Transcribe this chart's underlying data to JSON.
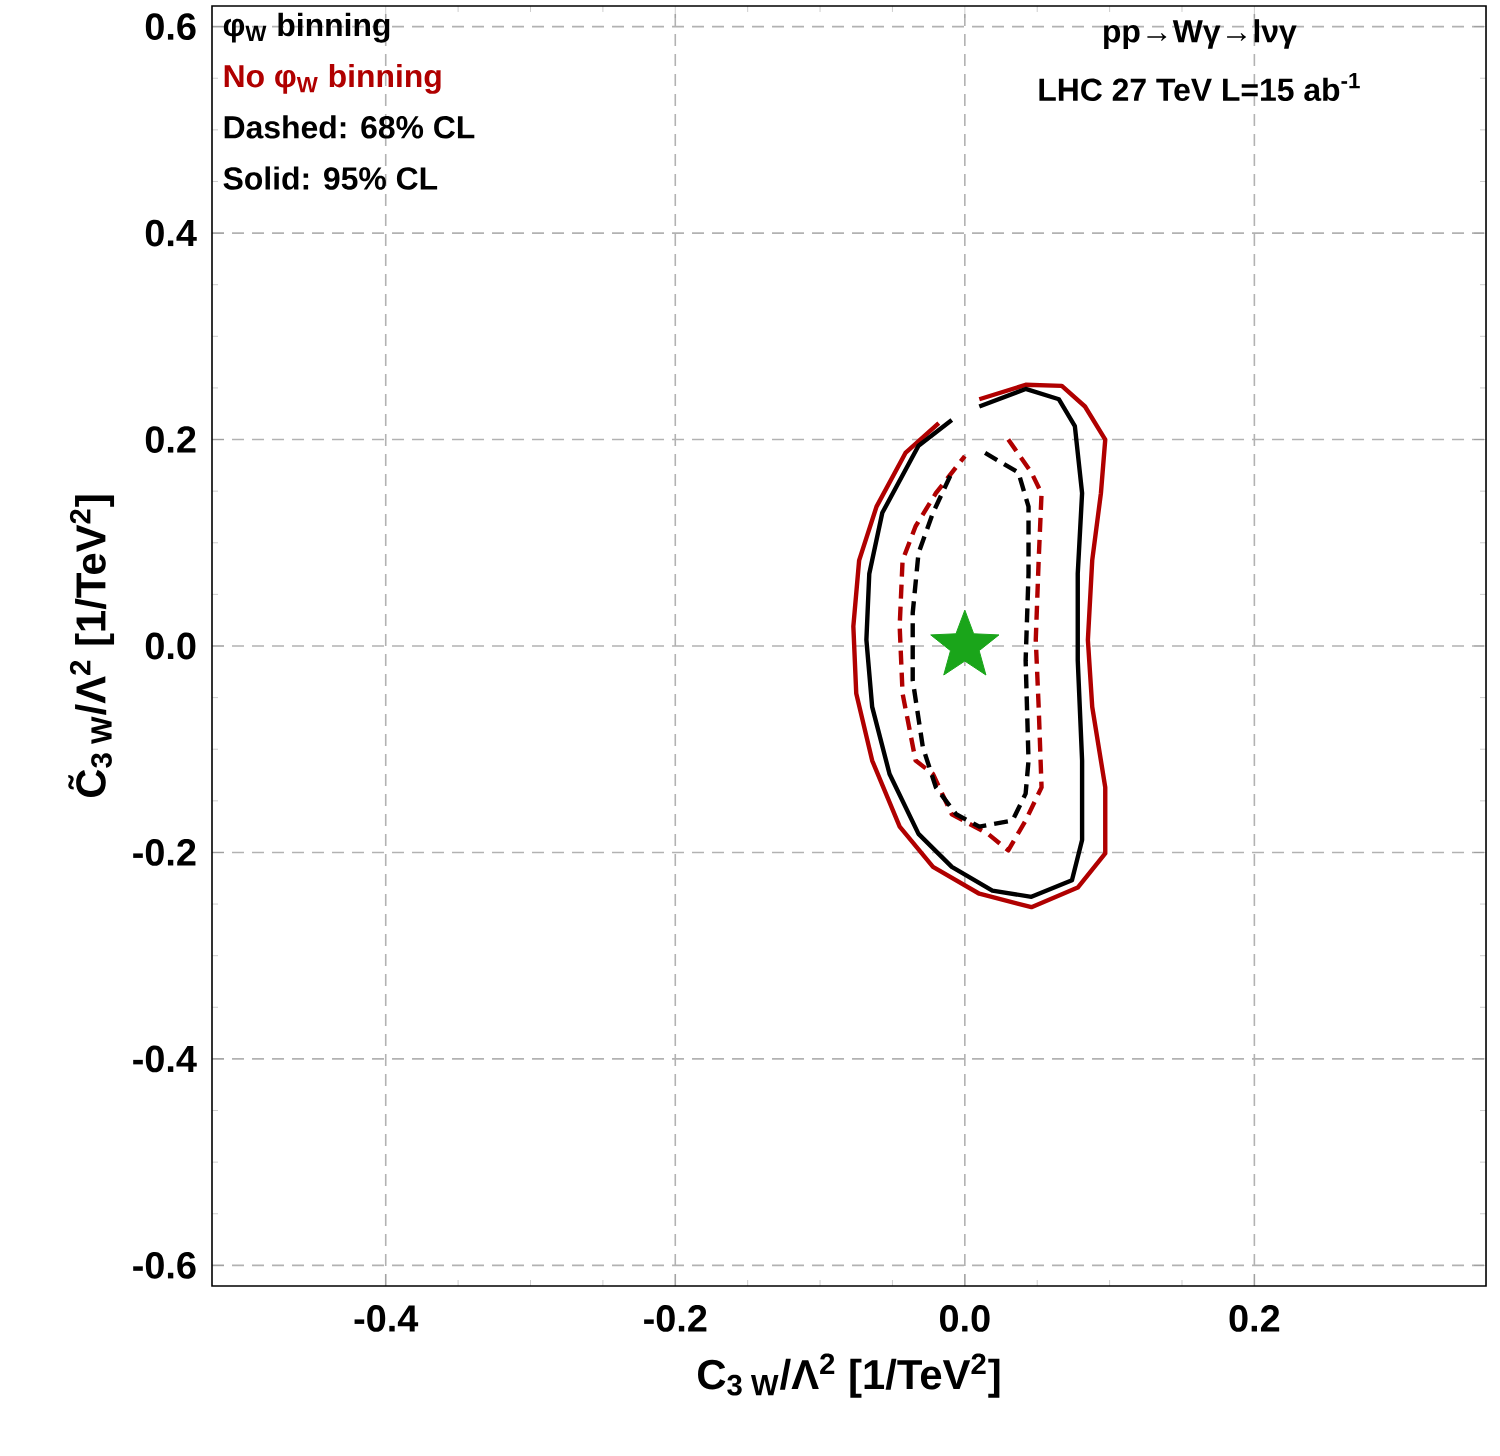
{
  "chart_data": {
    "type": "line",
    "xlabel": "C$_{3 W}$/Λ$^{2}$ [1/TeV$^{2}$]",
    "ylabel": "C̃$_{3 W}$/Λ$^{2}$ [1/TeV$^{2}$]",
    "xlim": [
      -0.52,
      0.36
    ],
    "ylim": [
      -0.62,
      0.62
    ],
    "xticks": [
      -0.4,
      -0.2,
      {
        "value": 0,
        "label": "0.0"
      },
      0.2
    ],
    "yticks": [
      -0.6,
      -0.4,
      -0.2,
      {
        "value": 0,
        "label": "0.0"
      },
      0.2,
      0.4,
      0.6
    ],
    "grid": true,
    "annotations": [
      "Dashed: 68% CL",
      "Solid: 95% CL",
      "pp→Wγ→lνγ",
      "LHC 27 TeV  L=15 ab$^{-1}$"
    ],
    "series": [
      {
        "name": "No φ$_{W}$ binning",
        "color": "#b00000",
        "line_style": "solid",
        "x": [
          0.01,
          0.042,
          0.067,
          0.083,
          0.097,
          0.094,
          0.088,
          0.085,
          0.088,
          0.097,
          0.097,
          0.078,
          0.046,
          0.01,
          -0.022,
          -0.045,
          -0.064,
          -0.075,
          -0.077,
          -0.073,
          -0.061,
          -0.041,
          -0.018
        ],
        "values": [
          0.239,
          0.253,
          0.252,
          0.232,
          0.2,
          0.148,
          0.083,
          0.006,
          -0.059,
          -0.137,
          -0.201,
          -0.234,
          -0.253,
          -0.24,
          -0.214,
          -0.175,
          -0.111,
          -0.046,
          0.019,
          0.083,
          0.135,
          0.187,
          0.216
        ]
      },
      {
        "name": "φ$_{W}$ binning",
        "color": "#000000",
        "line_style": "solid",
        "x": [
          0.01,
          0.042,
          0.065,
          0.076,
          0.081,
          0.078,
          0.078,
          0.081,
          0.081,
          0.074,
          0.046,
          0.019,
          -0.009,
          -0.032,
          -0.052,
          -0.064,
          -0.068,
          -0.066,
          -0.057,
          -0.032,
          -0.009
        ],
        "values": [
          0.232,
          0.249,
          0.239,
          0.213,
          0.148,
          0.07,
          -0.014,
          -0.111,
          -0.188,
          -0.227,
          -0.243,
          -0.237,
          -0.214,
          -0.182,
          -0.124,
          -0.059,
          0.006,
          0.07,
          0.129,
          0.194,
          0.219
        ]
      },
      {
        "color": "#b00000",
        "line_style": "dashed",
        "x": [
          0.03,
          0.046,
          0.053,
          0.051,
          0.049,
          0.051,
          0.053,
          0.042,
          0.03,
          0.016,
          -0.009,
          -0.022,
          -0.034,
          -0.043,
          -0.045,
          -0.043,
          -0.034,
          -0.02,
          0.0
        ],
        "values": [
          0.2,
          0.168,
          0.148,
          0.083,
          0.006,
          -0.059,
          -0.137,
          -0.169,
          -0.198,
          -0.182,
          -0.163,
          -0.124,
          -0.111,
          -0.046,
          0.019,
          0.083,
          0.116,
          0.148,
          0.184
        ]
      },
      {
        "color": "#000000",
        "line_style": "dashed",
        "x": [
          0.014,
          0.037,
          0.044,
          0.044,
          0.042,
          0.044,
          0.042,
          0.033,
          0.01,
          -0.006,
          -0.02,
          -0.029,
          -0.036,
          -0.036,
          -0.032,
          -0.022,
          -0.009
        ],
        "values": [
          0.187,
          0.168,
          0.135,
          0.07,
          -0.014,
          -0.111,
          -0.143,
          -0.169,
          -0.175,
          -0.163,
          -0.137,
          -0.098,
          -0.033,
          0.032,
          0.09,
          0.129,
          0.168
        ]
      },
      {
        "type": "scatter",
        "marker": "star",
        "color": "#1aa51a",
        "x": [
          0
        ],
        "values": [
          0
        ]
      }
    ]
  }
}
